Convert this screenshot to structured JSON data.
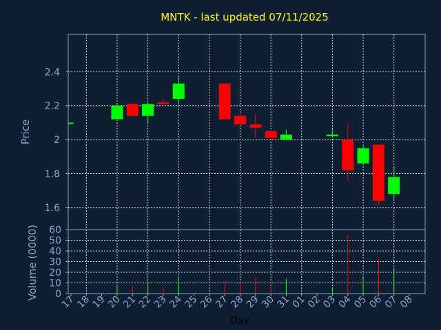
{
  "chart_data": {
    "type": "candlestick",
    "title": "MNTK - last updated 07/11/2025",
    "xlabel": "Day",
    "price_panel": {
      "ylabel": "Price",
      "ylim": [
        1.47,
        2.62
      ],
      "yticks": [
        "1.6",
        "1.8",
        "2",
        "2.2",
        "2.4"
      ],
      "ytick_values": [
        1.6,
        1.8,
        2.0,
        2.2,
        2.4
      ]
    },
    "volume_panel": {
      "ylabel": "Volume (0000)",
      "ylim": [
        0,
        60
      ],
      "yticks": [
        "0",
        "10",
        "20",
        "30",
        "40",
        "50",
        "60"
      ],
      "ytick_values": [
        0,
        10,
        20,
        30,
        40,
        50,
        60
      ]
    },
    "categories": [
      "17",
      "18",
      "19",
      "20",
      "21",
      "22",
      "23",
      "24",
      "25",
      "26",
      "27",
      "28",
      "29",
      "30",
      "31",
      "01",
      "02",
      "03",
      "04",
      "05",
      "06",
      "07",
      "08"
    ],
    "candles": [
      {
        "day": "17",
        "open": 2.1,
        "close": 2.1,
        "high": 2.1,
        "low": 2.1,
        "volume": 0
      },
      {
        "day": "20",
        "open": 2.12,
        "close": 2.2,
        "high": 2.21,
        "low": 2.12,
        "volume": 8
      },
      {
        "day": "21",
        "open": 2.21,
        "close": 2.14,
        "high": 2.22,
        "low": 2.14,
        "volume": 7
      },
      {
        "day": "22",
        "open": 2.14,
        "close": 2.21,
        "high": 2.22,
        "low": 2.1,
        "volume": 11
      },
      {
        "day": "23",
        "open": 2.22,
        "close": 2.21,
        "high": 2.24,
        "low": 2.2,
        "volume": 6
      },
      {
        "day": "24",
        "open": 2.24,
        "close": 2.33,
        "high": 2.37,
        "low": 2.21,
        "volume": 16
      },
      {
        "day": "27",
        "open": 2.33,
        "close": 2.12,
        "high": 2.33,
        "low": 2.12,
        "volume": 11
      },
      {
        "day": "28",
        "open": 2.14,
        "close": 2.09,
        "high": 2.15,
        "low": 2.09,
        "volume": 9
      },
      {
        "day": "29",
        "open": 2.09,
        "close": 2.07,
        "high": 2.15,
        "low": 2.01,
        "volume": 15
      },
      {
        "day": "30",
        "open": 2.05,
        "close": 2.01,
        "high": 2.05,
        "low": 2.01,
        "volume": 7
      },
      {
        "day": "31",
        "open": 2.0,
        "close": 2.03,
        "high": 2.06,
        "low": 2.0,
        "volume": 14
      },
      {
        "day": "03",
        "open": 2.02,
        "close": 2.03,
        "high": 2.06,
        "low": 2.02,
        "volume": 5
      },
      {
        "day": "04",
        "open": 2.0,
        "close": 1.82,
        "high": 2.09,
        "low": 1.76,
        "volume": 55
      },
      {
        "day": "05",
        "open": 1.86,
        "close": 1.95,
        "high": 1.97,
        "low": 1.86,
        "volume": 15
      },
      {
        "day": "06",
        "open": 1.97,
        "close": 1.64,
        "high": 1.97,
        "low": 1.61,
        "volume": 32
      },
      {
        "day": "07",
        "open": 1.68,
        "close": 1.78,
        "high": 1.84,
        "low": 1.65,
        "volume": 24
      }
    ]
  },
  "colors": {
    "background": "#0f1f33",
    "up": "#00ff00",
    "down": "#ff0000",
    "axis": "#8aa6c8",
    "grid": "#c8d6e8",
    "title": "#ffff00"
  }
}
